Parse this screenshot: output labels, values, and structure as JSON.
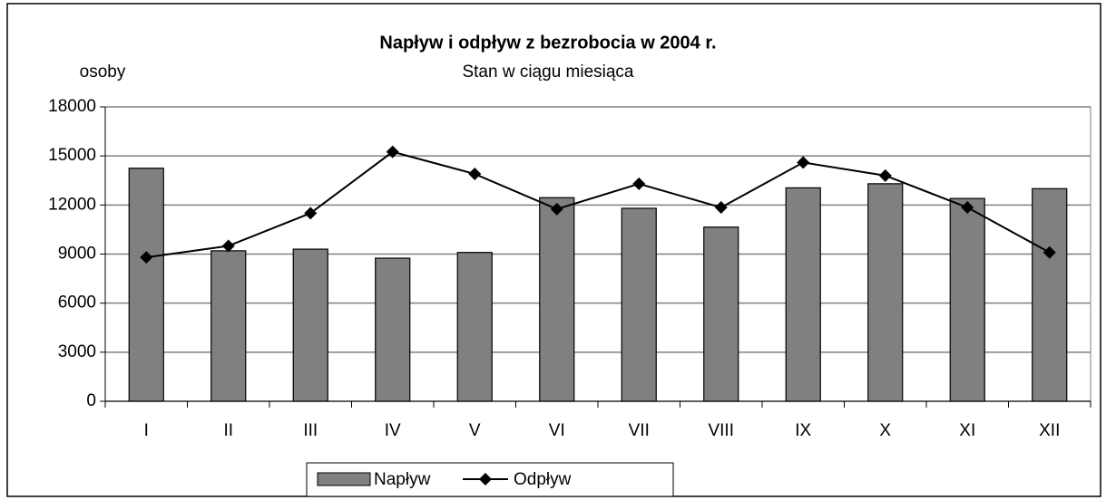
{
  "chart_data": {
    "type": "bar_line",
    "title": "Napływ i odpływ z bezrobocia w 2004 r.",
    "subtitle": "Stan w ciągu miesiąca",
    "y_label": "osoby",
    "categories": [
      "I",
      "II",
      "III",
      "IV",
      "V",
      "VI",
      "VII",
      "VIII",
      "IX",
      "X",
      "XI",
      "XII"
    ],
    "series": [
      {
        "name": "Napływ",
        "type": "bar",
        "color": "#808080",
        "values": [
          14250,
          9200,
          9300,
          8750,
          9100,
          12450,
          11800,
          10650,
          13050,
          13300,
          12400,
          13000
        ]
      },
      {
        "name": "Odpływ",
        "type": "line",
        "color": "#000000",
        "values": [
          8800,
          9500,
          11500,
          15250,
          13900,
          11750,
          13300,
          11850,
          14600,
          13800,
          11850,
          9100
        ]
      }
    ],
    "ylim": [
      0,
      18000
    ],
    "yticks": [
      0,
      3000,
      6000,
      9000,
      12000,
      15000,
      18000
    ],
    "grid": true,
    "legend": "bottom"
  }
}
